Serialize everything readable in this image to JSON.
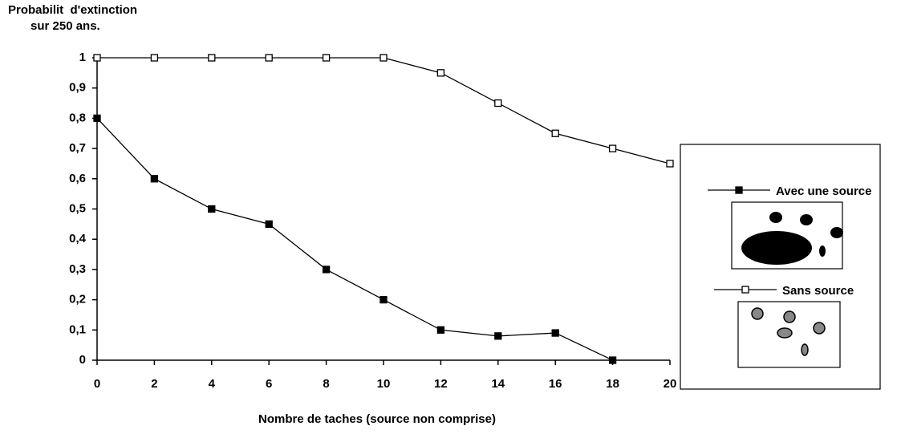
{
  "chart_data": {
    "type": "line",
    "y_label_lines": [
      "Probabilit  d'extinction",
      "sur 250 ans."
    ],
    "x_label": "Nombre de taches (source non comprise)",
    "x": [
      0,
      2,
      4,
      6,
      8,
      10,
      12,
      14,
      16,
      18,
      20
    ],
    "series": [
      {
        "name": "Avec une source",
        "color": "#000000",
        "marker_fill": "#000000",
        "values": [
          0.8,
          0.6,
          0.5,
          0.45,
          0.3,
          0.2,
          0.1,
          0.08,
          0.09,
          0,
          null
        ]
      },
      {
        "name": "Sans source",
        "color": "#000000",
        "marker_fill": "#ffffff",
        "values": [
          1,
          1,
          1,
          1,
          1,
          1,
          0.95,
          0.85,
          0.75,
          0.7,
          0.65
        ]
      }
    ],
    "xlim": [
      0,
      20
    ],
    "xticks": [
      0,
      2,
      4,
      6,
      8,
      10,
      12,
      14,
      16,
      18,
      20
    ],
    "ylim": [
      0,
      1
    ],
    "yticks": [
      0,
      {
        "value": 0.1,
        "label": "0,1"
      },
      {
        "value": 0.2,
        "label": "0,2"
      },
      {
        "value": 0.3,
        "label": "0,3"
      },
      {
        "value": 0.4,
        "label": "0,4"
      },
      {
        "value": 0.5,
        "label": "0,5"
      },
      {
        "value": 0.6,
        "label": "0,6"
      },
      {
        "value": 0.7,
        "label": "0,7"
      },
      {
        "value": 0.8,
        "label": "0,8"
      },
      {
        "value": 0.9,
        "label": "0,9"
      },
      1
    ],
    "grid": false
  }
}
